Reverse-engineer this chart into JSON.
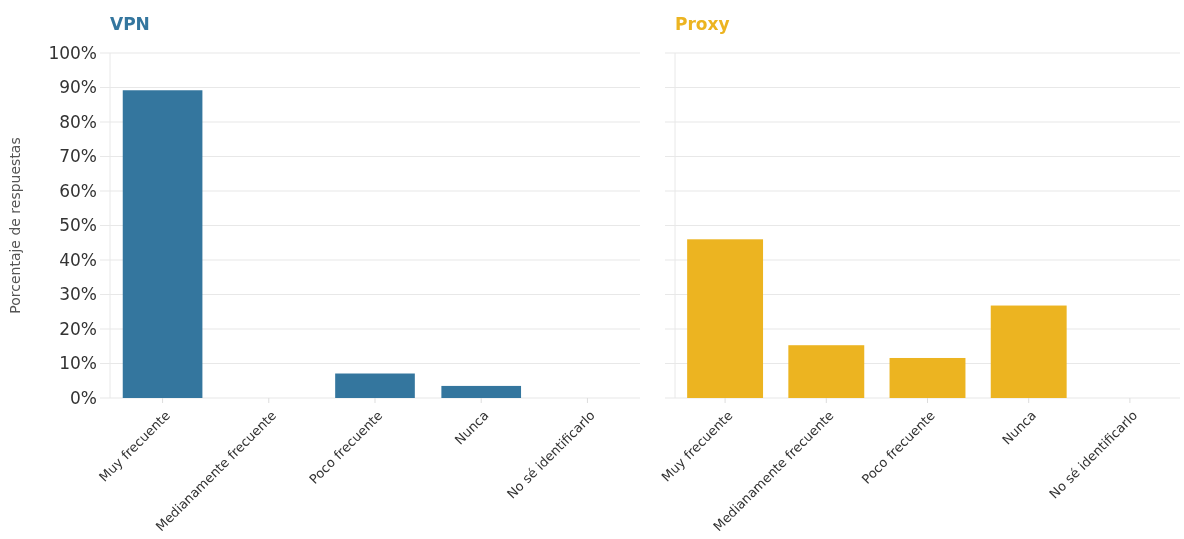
{
  "chart_data": [
    {
      "type": "bar",
      "title": "VPN",
      "ylabel": "Porcentaje de respuestas",
      "categories": [
        "Muy frecuente",
        "Medianamente frecuente",
        "Poco frecuente",
        "Nunca",
        "No sé identificarlo"
      ],
      "series": [
        {
          "color": "#34769e",
          "values": [
            89.2,
            0,
            7.1,
            3.5,
            0
          ]
        }
      ],
      "ylim": [
        0,
        100
      ],
      "yticks": [
        {
          "value": 0,
          "label": "0%"
        },
        {
          "value": 10,
          "label": "10%"
        },
        {
          "value": 20,
          "label": "20%"
        },
        {
          "value": 30,
          "label": "30%"
        },
        {
          "value": 40,
          "label": "40%"
        },
        {
          "value": 50,
          "label": "50%"
        },
        {
          "value": 60,
          "label": "60%"
        },
        {
          "value": 70,
          "label": "70%"
        },
        {
          "value": 80,
          "label": "80%"
        },
        {
          "value": 90,
          "label": "90%"
        },
        {
          "value": 100,
          "label": "100%"
        }
      ],
      "grid": "y"
    },
    {
      "type": "bar",
      "title": "Proxy",
      "categories": [
        "Muy frecuente",
        "Medianamente frecuente",
        "Poco frecuente",
        "Nunca",
        "No sé identificarlo"
      ],
      "series": [
        {
          "color": "#ecb421",
          "values": [
            46,
            15.3,
            11.6,
            26.8,
            0
          ]
        }
      ],
      "ylim": [
        0,
        100
      ],
      "yticks": [
        {
          "value": 0,
          "label": null
        },
        {
          "value": 10,
          "label": null
        },
        {
          "value": 20,
          "label": null
        },
        {
          "value": 30,
          "label": null
        },
        {
          "value": 40,
          "label": null
        },
        {
          "value": 50,
          "label": null
        },
        {
          "value": 60,
          "label": null
        },
        {
          "value": 70,
          "label": null
        },
        {
          "value": 80,
          "label": null
        },
        {
          "value": 90,
          "label": null
        },
        {
          "value": 100,
          "label": null
        }
      ],
      "grid": "y",
      "tick_labels": "x"
    }
  ]
}
